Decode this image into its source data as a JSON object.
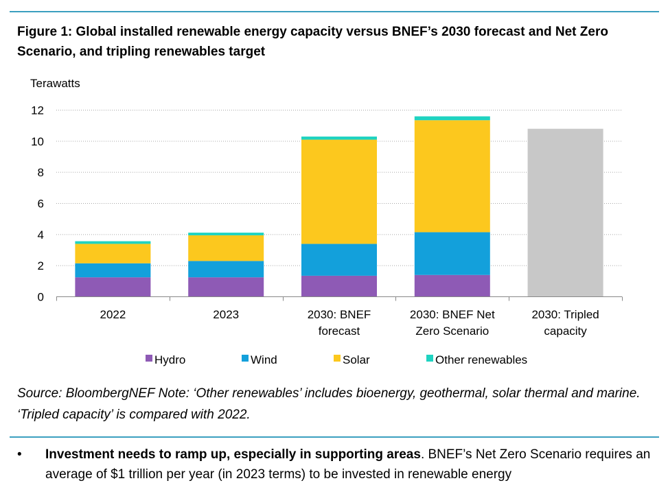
{
  "figure": {
    "title": "Figure 1: Global installed renewable energy capacity versus BNEF’s 2030 forecast and Net Zero Scenario, and tripling renewables target",
    "source_note": "Source: BloombergNEF Note: ‘Other renewables’ includes bioenergy, geothermal, solar thermal and marine. ‘Tripled capacity’ is compared with 2022."
  },
  "bullet": {
    "marker": "•",
    "lead": "Investment needs to ramp up, especially in supporting areas",
    "text": ". BNEF’s Net Zero Scenario requires an average of $1 trillion per year (in 2023 terms) to be invested in renewable energy"
  },
  "chart_data": {
    "type": "bar",
    "stacked": true,
    "ylabel": "Terawatts",
    "xlabel": "",
    "ylim": [
      0,
      12
    ],
    "yticks": [
      0,
      2,
      4,
      6,
      8,
      10,
      12
    ],
    "grid": true,
    "legend_position": "bottom",
    "categories": [
      [
        "2022"
      ],
      [
        "2023"
      ],
      [
        "2030: BNEF",
        "forecast"
      ],
      [
        "2030: BNEF Net",
        "Zero Scenario"
      ],
      [
        "2030: Tripled",
        "capacity"
      ]
    ],
    "series": [
      {
        "name": "Hydro",
        "color": "#8e5ab5",
        "values": [
          1.25,
          1.25,
          1.35,
          1.4,
          null
        ]
      },
      {
        "name": "Wind",
        "color": "#13a0db",
        "values": [
          0.9,
          1.05,
          2.05,
          2.75,
          null
        ]
      },
      {
        "name": "Solar",
        "color": "#fcc81e",
        "values": [
          1.25,
          1.65,
          6.7,
          7.2,
          null
        ]
      },
      {
        "name": "Other renewables",
        "color": "#1fd3c1",
        "values": [
          0.17,
          0.17,
          0.2,
          0.25,
          null
        ]
      }
    ],
    "extra_bars": [
      {
        "category_index": 4,
        "value": 10.8,
        "color": "#c8c8c8"
      }
    ]
  }
}
